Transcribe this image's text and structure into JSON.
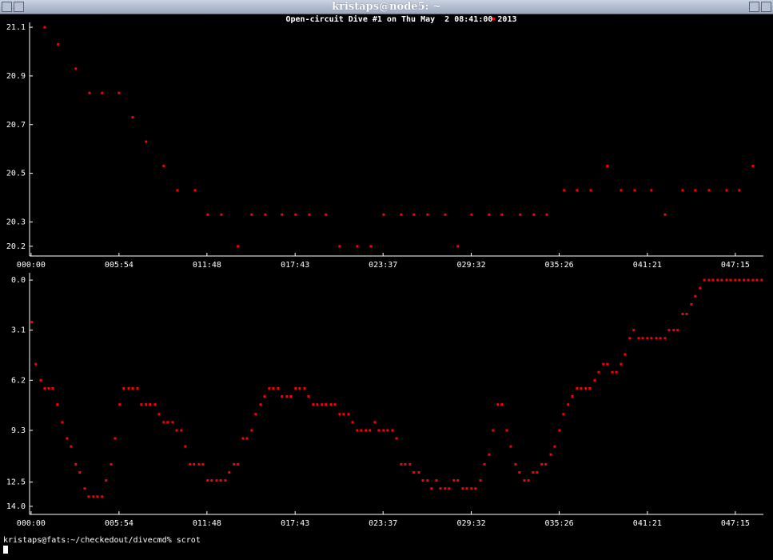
{
  "window": {
    "title": "kristaps@node5: ~"
  },
  "chart_data": [
    {
      "type": "scatter",
      "title": "Open-circuit Dive #1 on Thu May  2 08:41:00 2013",
      "color": "#ff0000",
      "x": [
        55,
        109,
        180,
        235,
        286,
        354,
        409,
        463,
        534,
        589,
        660,
        711,
        766,
        833,
        888,
        943,
        1010,
        1065,
        1120,
        1187,
        1242,
        1313,
        1368,
        1419,
        1490,
        1541,
        1596,
        1667,
        1718,
        1773,
        1844,
        1895,
        1969,
        2024,
        2076,
        2146,
        2198,
        2253,
        2320,
        2375,
        2430,
        2497,
        2552,
        2623,
        2674,
        2729,
        2800,
        2851,
        2906
      ],
      "values": [
        21.1,
        21.03,
        20.93,
        20.83,
        20.83,
        20.83,
        20.73,
        20.63,
        20.53,
        20.43,
        20.43,
        20.33,
        20.33,
        20.2,
        20.33,
        20.33,
        20.33,
        20.33,
        20.33,
        20.33,
        20.2,
        20.2,
        20.2,
        20.33,
        20.33,
        20.33,
        20.33,
        20.33,
        20.2,
        20.33,
        20.33,
        20.33,
        20.33,
        20.33,
        20.33,
        20.43,
        20.43,
        20.43,
        20.53,
        20.43,
        20.43,
        20.43,
        20.33,
        20.43,
        20.43,
        20.43,
        20.43,
        20.43,
        20.53
      ],
      "xlim": [
        -6,
        2948
      ],
      "xticks": [
        {
          "value": 0,
          "label": "000:00"
        },
        {
          "value": 354,
          "label": "005:54"
        },
        {
          "value": 708,
          "label": "011:48"
        },
        {
          "value": 1063,
          "label": "017:43"
        },
        {
          "value": 1417,
          "label": "023:37"
        },
        {
          "value": 1772,
          "label": "029:32"
        },
        {
          "value": 2126,
          "label": "035:26"
        },
        {
          "value": 2481,
          "label": "041:21"
        },
        {
          "value": 2835,
          "label": "047:15"
        }
      ],
      "ylim": [
        20.16,
        21.12
      ],
      "yticks": [
        20.2,
        20.3,
        20.5,
        20.7,
        20.9,
        21.1
      ]
    },
    {
      "type": "scatter",
      "color": "#ff0000",
      "y_inverted": true,
      "x": [
        3,
        19,
        39,
        55,
        71,
        87,
        106,
        126,
        145,
        161,
        180,
        196,
        216,
        232,
        251,
        267,
        286,
        302,
        322,
        338,
        357,
        373,
        393,
        409,
        428,
        444,
        463,
        479,
        499,
        515,
        534,
        550,
        570,
        586,
        605,
        621,
        640,
        656,
        676,
        692,
        711,
        727,
        747,
        763,
        782,
        798,
        817,
        833,
        853,
        869,
        888,
        904,
        924,
        940,
        959,
        975,
        994,
        1010,
        1030,
        1046,
        1065,
        1081,
        1101,
        1117,
        1136,
        1152,
        1171,
        1187,
        1207,
        1223,
        1242,
        1258,
        1278,
        1294,
        1313,
        1329,
        1348,
        1364,
        1384,
        1400,
        1419,
        1435,
        1455,
        1471,
        1490,
        1506,
        1525,
        1541,
        1561,
        1577,
        1596,
        1612,
        1632,
        1648,
        1667,
        1683,
        1702,
        1718,
        1738,
        1754,
        1773,
        1789,
        1809,
        1825,
        1844,
        1860,
        1879,
        1895,
        1915,
        1931,
        1950,
        1966,
        1986,
        2002,
        2021,
        2037,
        2056,
        2072,
        2092,
        2108,
        2127,
        2143,
        2162,
        2179,
        2198,
        2214,
        2233,
        2249,
        2269,
        2285,
        2304,
        2320,
        2340,
        2356,
        2375,
        2391,
        2410,
        2426,
        2446,
        2462,
        2481,
        2497,
        2517,
        2533,
        2552,
        2568,
        2587,
        2603,
        2623,
        2639,
        2658,
        2674,
        2693,
        2710,
        2729,
        2745,
        2764,
        2780,
        2800,
        2816,
        2835,
        2851,
        2870,
        2887,
        2906,
        2922,
        2941
      ],
      "values": [
        2.6,
        5.2,
        6.2,
        6.7,
        6.7,
        6.7,
        7.7,
        8.8,
        9.8,
        10.3,
        11.4,
        11.9,
        12.9,
        13.4,
        13.4,
        13.4,
        13.4,
        12.4,
        11.4,
        9.8,
        7.7,
        6.7,
        6.7,
        6.7,
        6.7,
        7.7,
        7.7,
        7.7,
        7.7,
        8.3,
        8.8,
        8.8,
        8.8,
        9.3,
        9.3,
        10.3,
        11.4,
        11.4,
        11.4,
        11.4,
        12.4,
        12.4,
        12.4,
        12.4,
        12.4,
        11.9,
        11.4,
        11.4,
        9.8,
        9.8,
        9.3,
        8.3,
        7.7,
        7.2,
        6.7,
        6.7,
        6.7,
        7.2,
        7.2,
        7.2,
        6.7,
        6.7,
        6.7,
        7.2,
        7.7,
        7.7,
        7.7,
        7.7,
        7.7,
        7.7,
        8.3,
        8.3,
        8.3,
        8.8,
        9.3,
        9.3,
        9.3,
        9.3,
        8.8,
        9.3,
        9.3,
        9.3,
        9.3,
        9.8,
        11.4,
        11.4,
        11.4,
        11.9,
        11.9,
        12.4,
        12.4,
        12.9,
        12.4,
        12.9,
        12.9,
        12.9,
        12.4,
        12.4,
        12.9,
        12.9,
        12.9,
        12.9,
        12.4,
        11.4,
        10.8,
        9.3,
        7.7,
        7.7,
        9.3,
        10.3,
        11.4,
        11.9,
        12.4,
        12.4,
        11.9,
        11.9,
        11.4,
        11.4,
        10.8,
        10.3,
        9.3,
        8.3,
        7.7,
        7.2,
        6.7,
        6.7,
        6.7,
        6.7,
        6.2,
        5.7,
        5.2,
        5.2,
        5.7,
        5.7,
        5.2,
        4.6,
        3.6,
        3.1,
        3.6,
        3.6,
        3.6,
        3.6,
        3.6,
        3.6,
        3.6,
        3.1,
        3.1,
        3.1,
        2.1,
        2.1,
        1.5,
        1.0,
        0.5,
        0,
        0,
        0,
        0,
        0,
        0,
        0,
        0,
        0,
        0,
        0,
        0,
        0,
        0
      ],
      "xlim": [
        -6,
        2948
      ],
      "xticks": [
        {
          "value": 0,
          "label": "000:00"
        },
        {
          "value": 354,
          "label": "005:54"
        },
        {
          "value": 708,
          "label": "011:48"
        },
        {
          "value": 1063,
          "label": "017:43"
        },
        {
          "value": 1417,
          "label": "023:37"
        },
        {
          "value": 1772,
          "label": "029:32"
        },
        {
          "value": 2126,
          "label": "035:26"
        },
        {
          "value": 2481,
          "label": "041:21"
        },
        {
          "value": 2835,
          "label": "047:15"
        }
      ],
      "ylim": [
        -0.45,
        14.5
      ],
      "yticks": [
        {
          "value": 0,
          "label": "0.0"
        },
        3.1,
        6.2,
        9.3,
        12.5,
        {
          "value": 14,
          "label": "14.0"
        }
      ]
    }
  ],
  "terminal": {
    "prompt": "kristaps@fats:~/checkedout/divecmd% scrot"
  }
}
